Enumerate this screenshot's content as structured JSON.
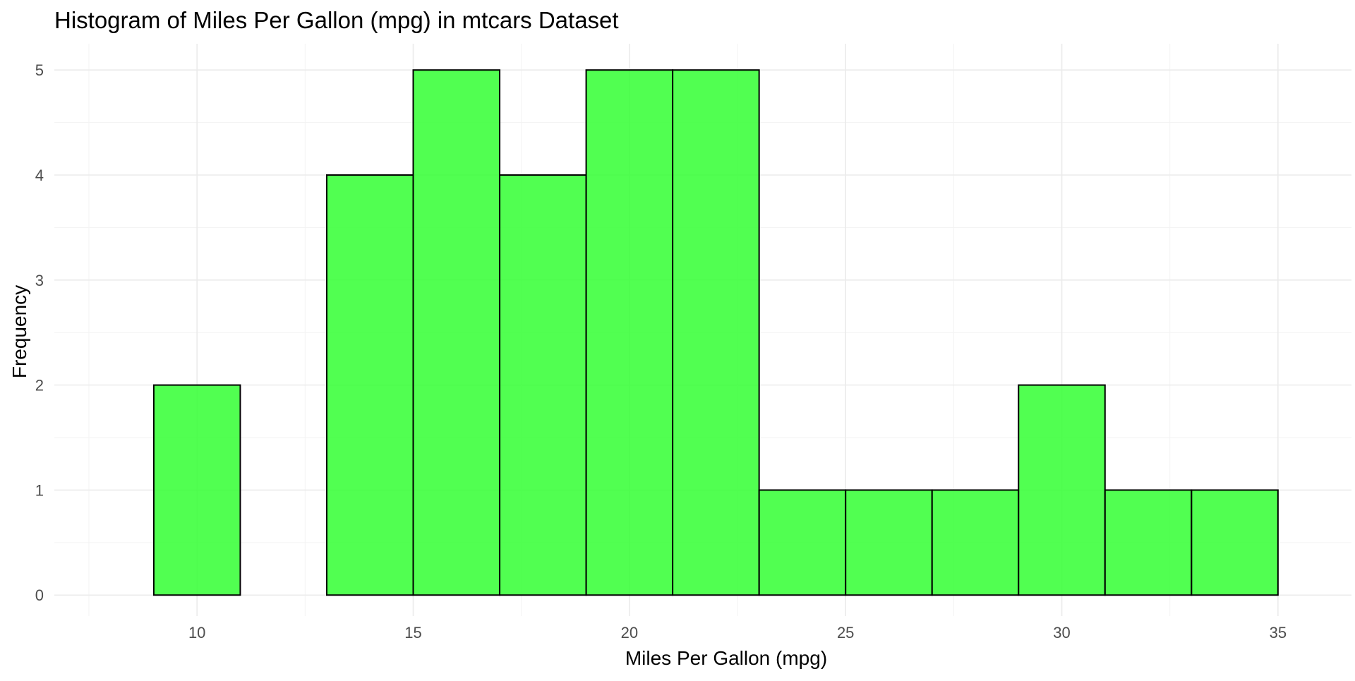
{
  "chart_data": {
    "type": "bar",
    "title": "Histogram of Miles Per Gallon (mpg) in mtcars Dataset",
    "xlabel": "Miles Per Gallon (mpg)",
    "ylabel": "Frequency",
    "bin_width": 2,
    "bins": [
      {
        "start": 9,
        "end": 11,
        "count": 2
      },
      {
        "start": 11,
        "end": 13,
        "count": 0
      },
      {
        "start": 13,
        "end": 15,
        "count": 4
      },
      {
        "start": 15,
        "end": 17,
        "count": 5
      },
      {
        "start": 17,
        "end": 19,
        "count": 4
      },
      {
        "start": 19,
        "end": 21,
        "count": 5
      },
      {
        "start": 21,
        "end": 23,
        "count": 5
      },
      {
        "start": 23,
        "end": 25,
        "count": 1
      },
      {
        "start": 25,
        "end": 27,
        "count": 1
      },
      {
        "start": 27,
        "end": 29,
        "count": 1
      },
      {
        "start": 29,
        "end": 31,
        "count": 2
      },
      {
        "start": 31,
        "end": 33,
        "count": 1
      },
      {
        "start": 33,
        "end": 35,
        "count": 1
      }
    ],
    "xlim": [
      6.7,
      36.7
    ],
    "ylim": [
      -0.2,
      5.25
    ],
    "x_ticks": [
      10,
      15,
      20,
      25,
      30,
      35
    ],
    "y_ticks": [
      0,
      1,
      2,
      3,
      4,
      5
    ],
    "bar_color": "#33ff33",
    "bar_opacity": 0.85,
    "bar_outline_color": "#000000",
    "grid": true,
    "legend": "none"
  }
}
